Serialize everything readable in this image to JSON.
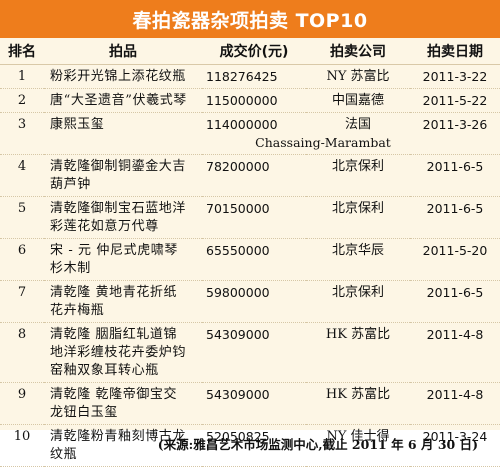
{
  "title": "春拍瓷器杂项拍卖 TOP10",
  "headers": {
    "rank": "排名",
    "item": "拍品",
    "price": "成交价(元)",
    "house": "拍卖公司",
    "date": "拍卖日期"
  },
  "rows": [
    {
      "rank": "1",
      "item_lines": [
        "粉彩开光锦上添花纹瓶"
      ],
      "price": "118276425",
      "house": "NY 苏富比",
      "date": "2011-3-22"
    },
    {
      "rank": "2",
      "item_lines": [
        "唐“大圣遗音”伏羲式琴"
      ],
      "price": "115000000",
      "house": "中国嘉德",
      "date": "2011-5-22"
    },
    {
      "rank": "3",
      "item_lines": [
        "康熙玉玺"
      ],
      "price": "114000000",
      "house": "法国",
      "house_sub": "Chassaing-Marambat",
      "date": "2011-3-26"
    },
    {
      "rank": "4",
      "item_lines": [
        "清乾隆御制铜鎏金大吉",
        "葫芦钟"
      ],
      "price": "78200000",
      "house": "北京保利",
      "date": "2011-6-5"
    },
    {
      "rank": "5",
      "item_lines": [
        "清乾隆御制宝石蓝地洋",
        "彩莲花如意万代尊"
      ],
      "price": "70150000",
      "house": "北京保利",
      "date": "2011-6-5"
    },
    {
      "rank": "6",
      "item_lines": [
        "宋 - 元 仲尼式虎啸琴",
        "杉木制"
      ],
      "price": "65550000",
      "house": "北京华辰",
      "date": "2011-5-20"
    },
    {
      "rank": "7",
      "item_lines": [
        "清乾隆 黄地青花折纸",
        "花卉梅瓶"
      ],
      "price": "59800000",
      "house": "北京保利",
      "date": "2011-6-5"
    },
    {
      "rank": "8",
      "item_lines": [
        "清乾隆 胭脂红轧道锦",
        "地洋彩缠枝花卉委炉钧",
        "窑釉双象耳转心瓶"
      ],
      "price": "54309000",
      "house": "HK 苏富比",
      "date": "2011-4-8"
    },
    {
      "rank": "9",
      "item_lines": [
        "清乾隆 乾隆帝御宝交",
        "龙钮白玉玺"
      ],
      "price": "54309000",
      "house": "HK 苏富比",
      "date": "2011-4-8"
    },
    {
      "rank": "10",
      "item_lines": [
        "清乾隆粉青釉刻博古龙",
        "纹瓶"
      ],
      "price": "52050825",
      "house": "NY 佳士得",
      "date": "2011-3-24"
    }
  ],
  "source": "(来源:雅昌艺术市场监测中心,截止 2011 年 6 月 30 日)",
  "colors": {
    "title_bg": "#ee7d1c",
    "table_bg": "#fdf6e5"
  }
}
